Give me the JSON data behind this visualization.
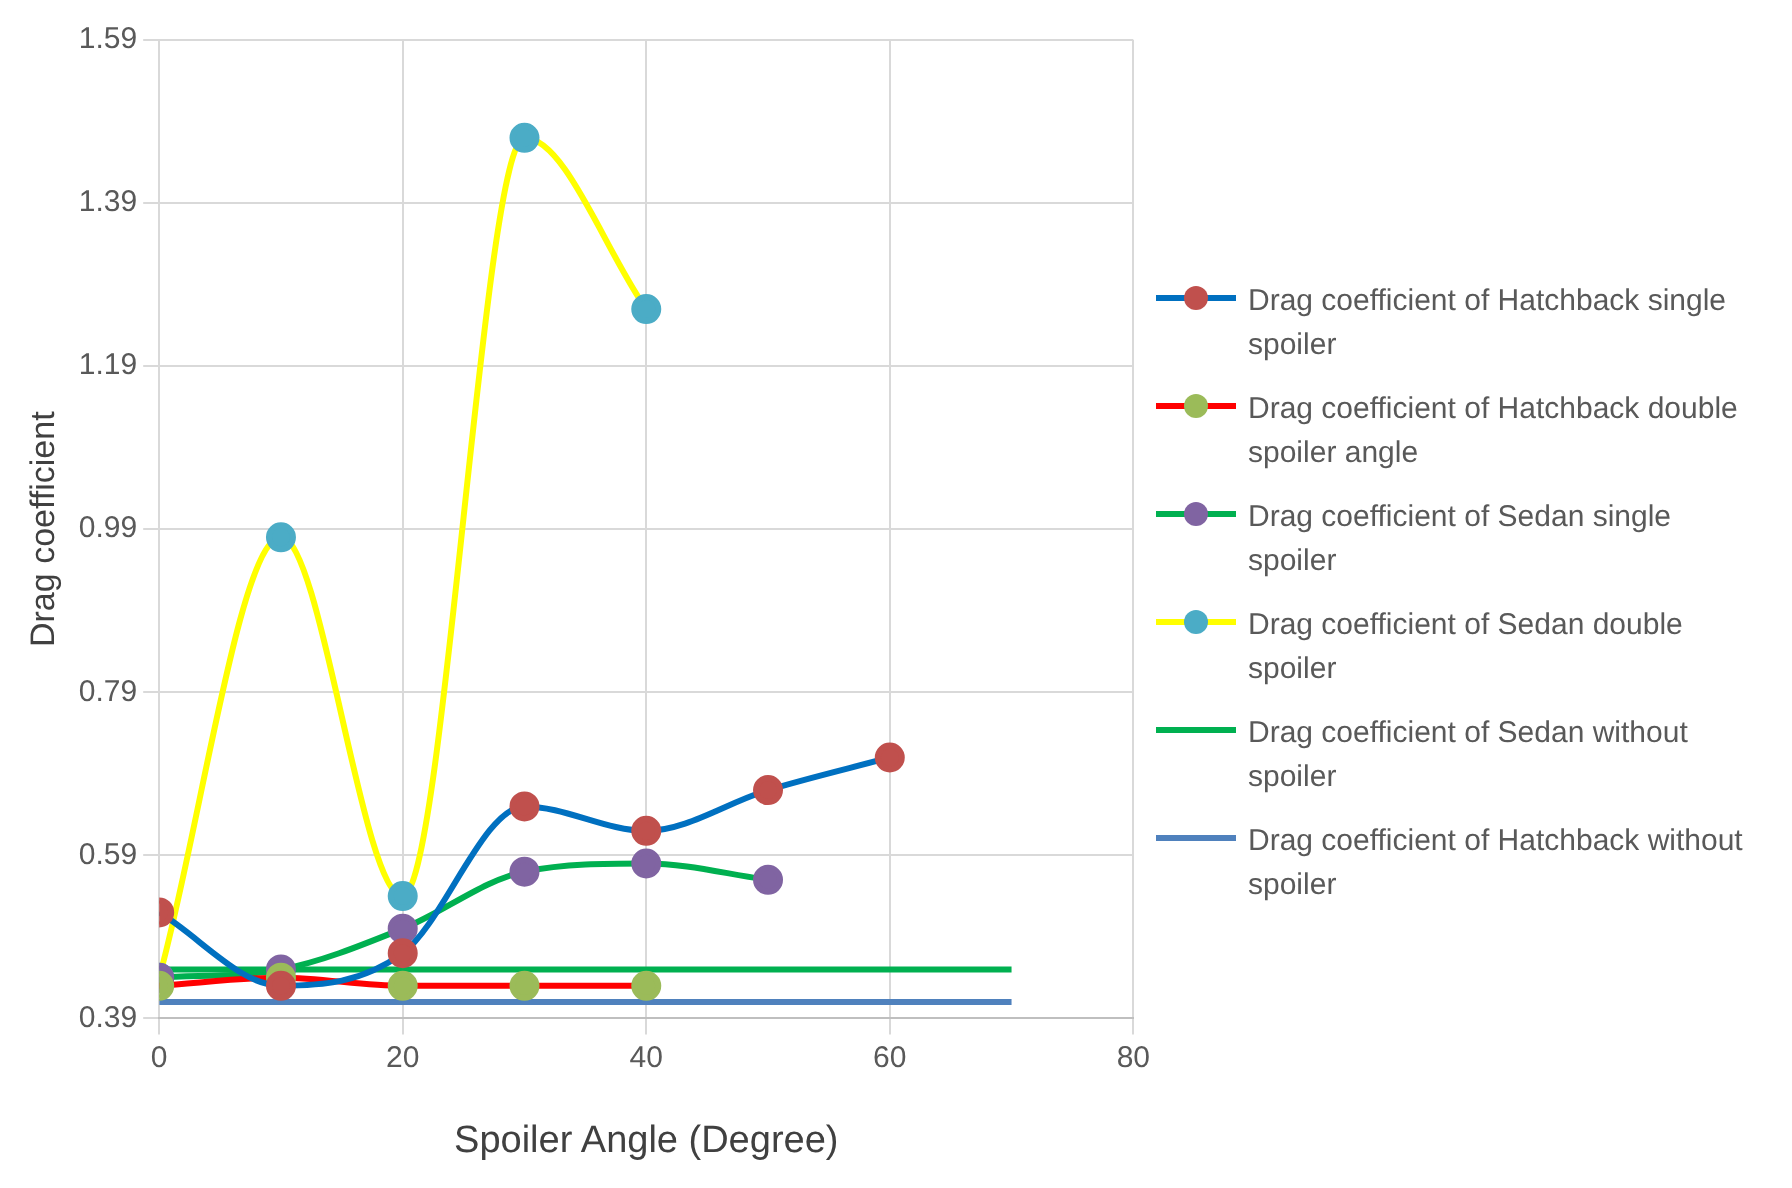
{
  "chart_data": {
    "type": "line",
    "xlabel": "Spoiler Angle (Degree)",
    "ylabel": "Drag coefficient",
    "xlim": [
      0,
      80
    ],
    "xticks": [
      0,
      20,
      40,
      60,
      80
    ],
    "ylim": [
      0.39,
      1.59
    ],
    "yticks": [
      0.39,
      0.59,
      0.79,
      0.99,
      1.19,
      1.39,
      1.59
    ],
    "grid": true,
    "legend": "right",
    "series": [
      {
        "name": "Drag coefficient of Hatchback single spoiler",
        "color": "#0070c0",
        "colors": [
          "#c0504d",
          "#c0504d",
          "#c0504d",
          "#c0504d",
          "#c0504d",
          "#c0504d",
          "#c0504d"
        ],
        "marker": "circle",
        "x": [
          0,
          10,
          20,
          30,
          40,
          50,
          60
        ],
        "values": [
          0.52,
          0.43,
          0.47,
          0.65,
          0.62,
          0.67,
          0.71
        ]
      },
      {
        "name": "Drag coefficient of Hatchback double spoiler angle",
        "color": "#ff0000",
        "colors": [
          "#9bbb59",
          "#9bbb59",
          "#9bbb59",
          "#9bbb59",
          "#9bbb59"
        ],
        "marker": "circle",
        "x": [
          0,
          10,
          20,
          30,
          40
        ],
        "values": [
          0.43,
          0.44,
          0.43,
          0.43,
          0.43
        ]
      },
      {
        "name": "Drag coefficient of Sedan single spoiler",
        "color": "#00b050",
        "colors": [
          "#8064a2",
          "#8064a2",
          "#8064a2",
          "#8064a2",
          "#8064a2",
          "#8064a2"
        ],
        "marker": "circle",
        "x": [
          0,
          10,
          20,
          30,
          40,
          50
        ],
        "values": [
          0.44,
          0.45,
          0.5,
          0.57,
          0.58,
          0.56
        ]
      },
      {
        "name": "Drag coefficient of Sedan double spoiler",
        "color": "#ffff00",
        "colors": [
          "#4bacc6",
          "#4bacc6",
          "#4bacc6",
          "#4bacc6",
          "#4bacc6"
        ],
        "marker": "circle",
        "x": [
          0,
          10,
          20,
          30,
          40
        ],
        "values": [
          0.44,
          0.98,
          0.54,
          1.47,
          1.26
        ]
      },
      {
        "name": "Drag coefficient of Sedan without spoiler",
        "color": "#00b050",
        "marker": "none",
        "x": [
          0,
          70
        ],
        "values": [
          0.45,
          0.45
        ]
      },
      {
        "name": "Drag coefficient of Hatchback without spoiler",
        "color": "#4f81bd",
        "marker": "none",
        "x": [
          0,
          70
        ],
        "values": [
          0.41,
          0.41
        ]
      }
    ]
  }
}
